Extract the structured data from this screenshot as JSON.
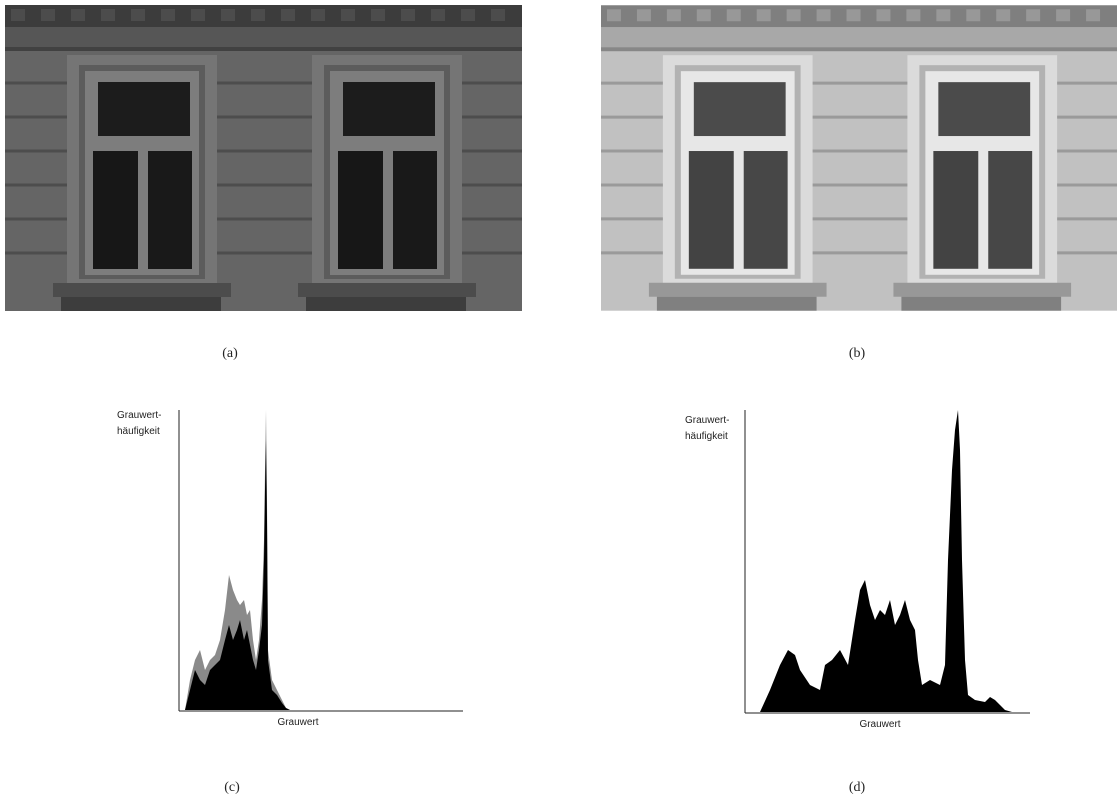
{
  "figure": {
    "panels": [
      {
        "caption": "(a)"
      },
      {
        "caption": "(b)"
      },
      {
        "caption": "(c)",
        "y_label": [
          "Grauwert-",
          "häufigkeit"
        ],
        "x_label": "Grauwert"
      },
      {
        "caption": "(d)",
        "y_label": [
          "Grauwert-",
          "häufigkeit"
        ],
        "x_label": "Grauwert"
      }
    ]
  }
}
